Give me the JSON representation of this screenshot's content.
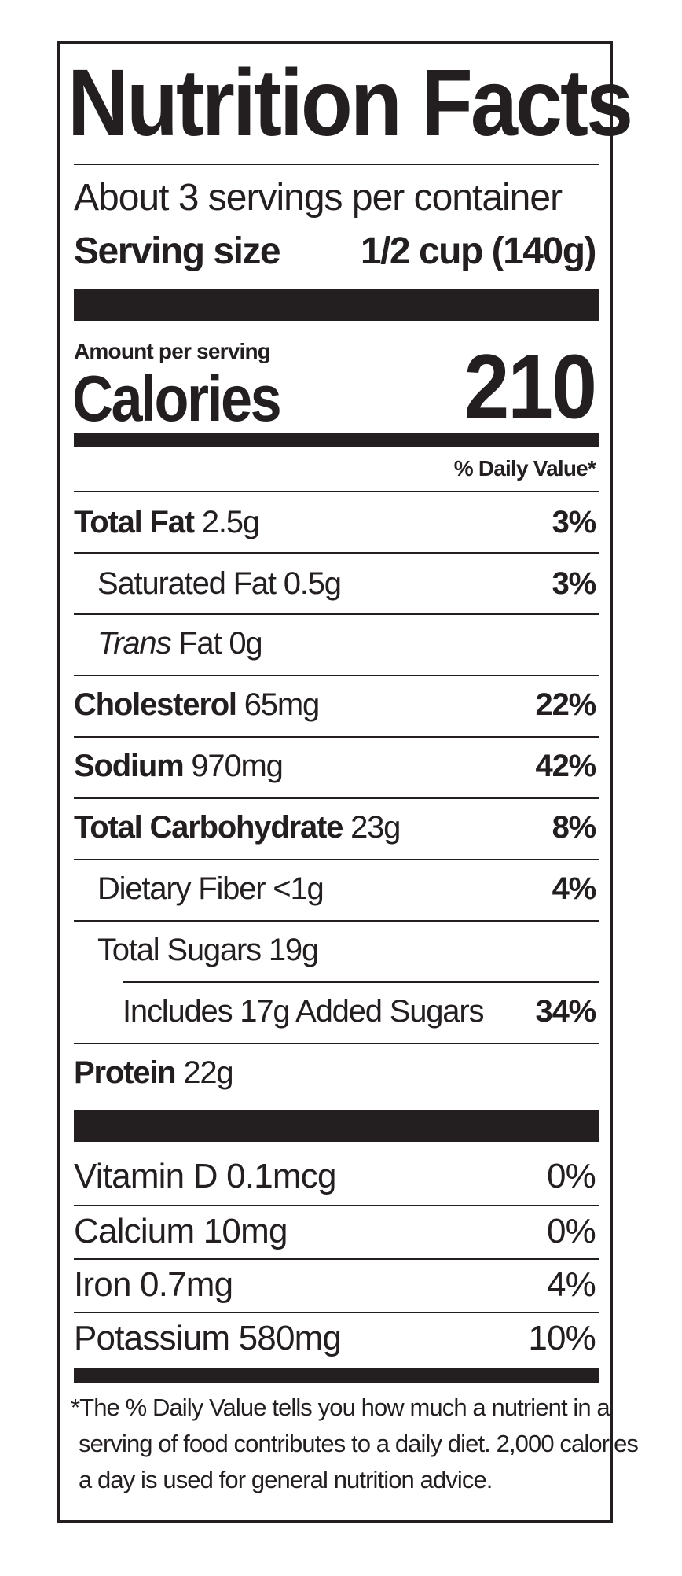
{
  "title": "Nutrition Facts",
  "servings_per_container": "About 3 servings per container",
  "serving_size_label": "Serving size",
  "serving_size_value": "1/2 cup (140g)",
  "amount_per_serving": "Amount per serving",
  "calories_label": "Calories",
  "calories_value": "210",
  "daily_value_header": "% Daily Value*",
  "nutrients": {
    "total_fat": {
      "name": "Total Fat",
      "amount": "2.5g",
      "dv": "3%"
    },
    "saturated_fat": {
      "name": "Saturated Fat",
      "amount": "0.5g",
      "dv": "3%"
    },
    "trans_fat": {
      "name_italic": "Trans",
      "name": "Fat",
      "amount": "0g"
    },
    "cholesterol": {
      "name": "Cholesterol",
      "amount": "65mg",
      "dv": "22%"
    },
    "sodium": {
      "name": "Sodium",
      "amount": "970mg",
      "dv": "42%"
    },
    "total_carbohydrate": {
      "name": "Total Carbohydrate",
      "amount": "23g",
      "dv": "8%"
    },
    "dietary_fiber": {
      "name": "Dietary Fiber",
      "amount": "<1g",
      "dv": "4%"
    },
    "total_sugars": {
      "name": "Total Sugars",
      "amount": "19g"
    },
    "added_sugars": {
      "text": "Includes 17g Added Sugars",
      "dv": "34%"
    },
    "protein": {
      "name": "Protein",
      "amount": "22g"
    }
  },
  "vitamins": [
    {
      "text": "Vitamin D 0.1mcg",
      "dv": "0%"
    },
    {
      "text": "Calcium 10mg",
      "dv": "0%"
    },
    {
      "text": "Iron 0.7mg",
      "dv": "4%"
    },
    {
      "text": "Potassium 580mg",
      "dv": "10%"
    }
  ],
  "footnote": [
    "*The % Daily Value tells you how much a nutrient in a",
    "serving of food contributes to a daily diet. 2,000 calories",
    "a day is used for general nutrition advice."
  ]
}
